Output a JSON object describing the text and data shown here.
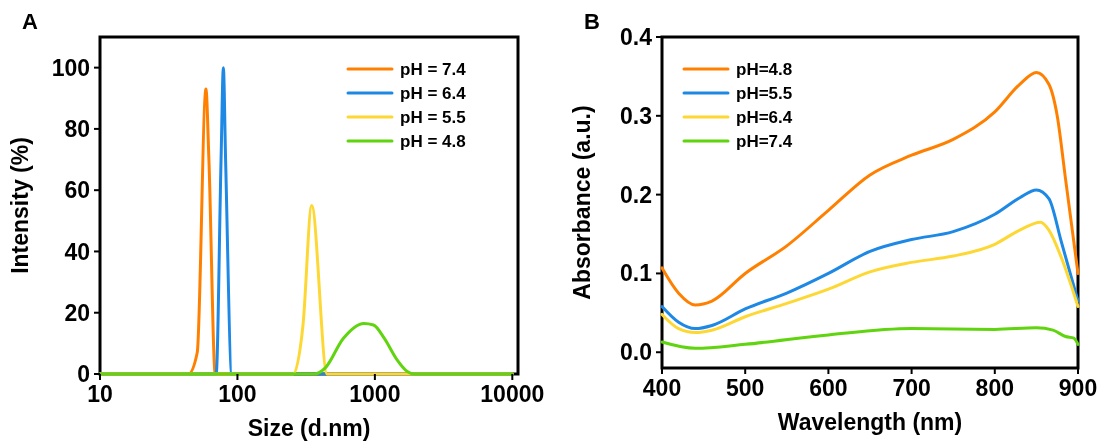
{
  "chart_data": [
    {
      "type": "line",
      "title": "A",
      "xlabel": "Size (d.nm)",
      "ylabel": "Intensity (%)",
      "log": "x",
      "xlim": [
        10,
        11000
      ],
      "xticks": [
        10,
        100,
        1000,
        10000
      ],
      "ylim": [
        0,
        110
      ],
      "yticks": [
        0,
        20,
        40,
        60,
        80,
        100
      ],
      "legend": "top right",
      "grid": false,
      "series": [
        {
          "name": "pH = 7.4",
          "color": "#ff8000",
          "x": [
            10,
            44,
            51,
            59,
            62,
            69,
            10000
          ],
          "values": [
            0,
            0,
            7,
            93,
            70,
            0,
            0
          ]
        },
        {
          "name": "pH = 6.4",
          "color": "#1e88e5",
          "x": [
            10,
            70,
            76,
            79,
            82,
            91,
            10000
          ],
          "values": [
            0,
            0,
            70,
            100,
            70,
            0,
            0
          ]
        },
        {
          "name": "pH = 5.5",
          "color": "#fdd835",
          "x": [
            10,
            254,
            300,
            347,
            449,
            10000
          ],
          "values": [
            0,
            0,
            16,
            55,
            0,
            0
          ]
        },
        {
          "name": "pH = 4.8",
          "color": "#5fd40f",
          "x": [
            10,
            364,
            436,
            587,
            831,
            977,
            1169,
            1442,
            1722,
            1937,
            10000
          ],
          "values": [
            0,
            0,
            2,
            11.5,
            16.5,
            16,
            11.7,
            4.8,
            0.8,
            0,
            0
          ]
        }
      ]
    },
    {
      "type": "line",
      "title": "B",
      "xlabel": "Wavelength (nm)",
      "ylabel": "Absorbance (a.u.)",
      "xlim": [
        400,
        900
      ],
      "xticks": [
        400,
        500,
        600,
        700,
        800,
        900
      ],
      "ylim": [
        -0.02,
        0.4
      ],
      "yticks": [
        {
          "value": 0,
          "label": "0.0"
        },
        0.1,
        0.2,
        0.3,
        0.4
      ],
      "legend": "top left",
      "grid": false,
      "series": [
        {
          "name": "pH=4.8",
          "color": "#ff8000",
          "x": [
            400,
            420,
            440,
            460,
            500,
            550,
            600,
            650,
            700,
            750,
            800,
            830,
            850,
            865,
            875,
            885,
            900
          ],
          "values": [
            0.107,
            0.075,
            0.06,
            0.065,
            0.1,
            0.135,
            0.18,
            0.225,
            0.25,
            0.27,
            0.305,
            0.34,
            0.355,
            0.34,
            0.3,
            0.22,
            0.1
          ]
        },
        {
          "name": "pH=5.5",
          "color": "#1e88e5",
          "x": [
            400,
            420,
            440,
            460,
            500,
            550,
            600,
            650,
            700,
            750,
            800,
            830,
            850,
            865,
            880,
            900
          ],
          "values": [
            0.058,
            0.038,
            0.03,
            0.034,
            0.055,
            0.075,
            0.1,
            0.128,
            0.143,
            0.153,
            0.175,
            0.196,
            0.206,
            0.195,
            0.14,
            0.065
          ]
        },
        {
          "name": "pH=6.4",
          "color": "#fdd835",
          "x": [
            400,
            420,
            440,
            460,
            500,
            550,
            600,
            650,
            700,
            750,
            800,
            830,
            855,
            865,
            880,
            900
          ],
          "values": [
            0.048,
            0.03,
            0.025,
            0.028,
            0.045,
            0.062,
            0.08,
            0.102,
            0.114,
            0.122,
            0.137,
            0.155,
            0.165,
            0.155,
            0.12,
            0.058
          ]
        },
        {
          "name": "pH=7.4",
          "color": "#5fd40f",
          "x": [
            400,
            440,
            500,
            600,
            700,
            800,
            850,
            870,
            885,
            895,
            900
          ],
          "values": [
            0.013,
            0.005,
            0.01,
            0.022,
            0.03,
            0.029,
            0.031,
            0.028,
            0.02,
            0.018,
            0.01
          ]
        }
      ]
    }
  ]
}
